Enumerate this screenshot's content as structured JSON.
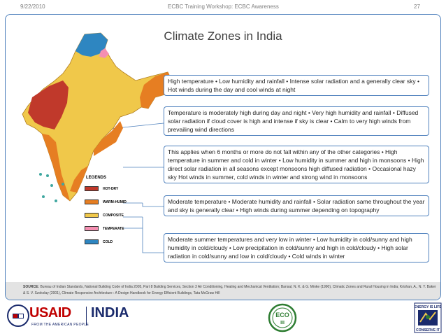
{
  "header": {
    "date": "9/22/2010",
    "center": "ECBC Training Workshop: ECBC Awareness",
    "page": "27"
  },
  "slide": {
    "title": "Climate Zones in India",
    "legend": {
      "title": "LEGENDS",
      "items": [
        {
          "label": "HOT-DRY",
          "color": "#c0392b"
        },
        {
          "label": "WARM-HUMID",
          "color": "#e67e22"
        },
        {
          "label": "COMPOSITE",
          "color": "#f0c84a"
        },
        {
          "label": "TEMPERATE",
          "color": "#f48fb1"
        },
        {
          "label": "COLD",
          "color": "#2e86c1"
        }
      ]
    },
    "zones": [
      {
        "text": "High temperature • Low humidity and rainfall • Intense solar radiation and a generally clear sky • Hot winds during the day and cool winds at night"
      },
      {
        "text": "Temperature is moderately high during day and night • Very high humidity and rainfall • Diffused solar radiation if cloud cover is high and intense if sky is clear • Calm to very high winds from prevailing wind directions"
      },
      {
        "text": "This applies when 6 months or more do not fall within any of the other categories • High temperature in summer and cold in winter • Low humidity in summer and high in monsoons • High direct solar radiation in all seasons except monsoons high diffused radiation • Occasional hazy sky Hot winds in summer, cold winds in winter and strong wind in monsoons"
      },
      {
        "text": "Moderate temperature • Moderate humidity and rainfall • Solar radiation same throughout the year and sky is generally clear • High winds during summer depending on topography"
      },
      {
        "text": "Moderate summer temperatures and very low in winter • Low humidity in cold/sunny and high humidity in cold/cloudy • Low precipitation in cold/sunny and high in cold/cloudy • High solar radiation in cold/sunny and low in cold/cloudy • Cold winds in winter"
      }
    ],
    "source_label": "SOURCE:",
    "source_text": "Bureau of Indian Standards, National Building Code of India 2005, Part 8 Building Services, Section 3 Air Conditioning, Heating and Mechanical Ventilation; Bansal, N. K. & G. Minke (1990), Climatic Zones and Rural Housing in India; Krishan, A., N. Y. Baker & S. V. Szokolay (2001), Climate Responsive Architecture : A Design Handbook for Energy Efficient Buildings, Tata McGraw Hill"
  },
  "footer": {
    "usaid_a": "USAID",
    "usaid_sub": "FROM THE AMERICAN PEOPLE",
    "india": "INDIA",
    "eco_text": "ECO",
    "eco_sub": "III",
    "bee_top": "ENERGY IS LIFE",
    "bee_bottom": "CONSERVE IT"
  }
}
